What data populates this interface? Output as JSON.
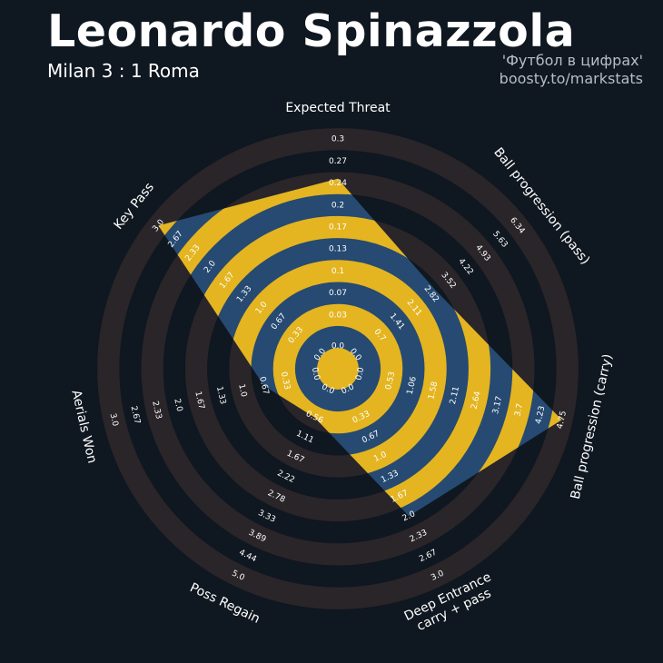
{
  "header": {
    "player": "Leonardo Spinazzola",
    "match": "Milan 3 : 1 Roma",
    "credit_line1": "'Футбол в цифрах'",
    "credit_line2": "boosty.to/markstats"
  },
  "colors": {
    "background": "#0f1720",
    "ring_dark": "#2a2529",
    "ring_light": "#0f1720",
    "polygon": "#264a72",
    "polygon_ring": "#e4b520",
    "text": "#ffffff"
  },
  "chart_data": {
    "type": "radar",
    "title": "Leonardo Spinazzola",
    "subtitle": "Milan 3 : 1 Roma",
    "axes": [
      {
        "label": "Expected Threat",
        "ticks": [
          "0.0",
          "0.03",
          "0.07",
          "0.1",
          "0.13",
          "0.17",
          "0.2",
          "0.24",
          "0.27",
          "0.3"
        ],
        "min": 0.0,
        "max": 0.3,
        "value": 0.24
      },
      {
        "label": "Ball progression (pass)",
        "ticks": [
          "0.0",
          "0.7",
          "1.41",
          "2.11",
          "2.82",
          "3.52",
          "4.22",
          "4.93",
          "5.63",
          "6.34"
        ],
        "min": 0.0,
        "max": 6.34,
        "value": 3.0
      },
      {
        "label": "Ball progression (carry)",
        "ticks": [
          "0.0",
          "0.53",
          "1.06",
          "1.58",
          "2.11",
          "2.64",
          "3.17",
          "3.7",
          "4.23",
          "4.75"
        ],
        "min": 0.0,
        "max": 4.75,
        "value": 4.75
      },
      {
        "label": "Deep Entrance\ncarry + pass",
        "ticks": [
          "0.0",
          "0.33",
          "0.67",
          "1.0",
          "1.33",
          "1.67",
          "2.0",
          "2.33",
          "2.67",
          "3.0"
        ],
        "min": 0.0,
        "max": 3.0,
        "value": 2.0
      },
      {
        "label": "Poss Regain",
        "ticks": [
          "0.0",
          "0.56",
          "1.11",
          "1.67",
          "2.22",
          "2.78",
          "3.33",
          "3.89",
          "4.44",
          "5.0"
        ],
        "min": 0.0,
        "max": 5.0,
        "value": 0.56
      },
      {
        "label": "Aerials Won",
        "ticks": [
          "0.0",
          "0.33",
          "0.67",
          "1.0",
          "1.33",
          "1.67",
          "2.0",
          "2.33",
          "2.67",
          "3.0"
        ],
        "min": 0.0,
        "max": 3.0,
        "value": 0.67
      },
      {
        "label": "Key Pass",
        "ticks": [
          "0.0",
          "0.33",
          "0.67",
          "1.0",
          "1.33",
          "1.67",
          "2.0",
          "2.33",
          "2.67",
          "3.0"
        ],
        "min": 0.0,
        "max": 3.0,
        "value": 3.0
      }
    ]
  }
}
